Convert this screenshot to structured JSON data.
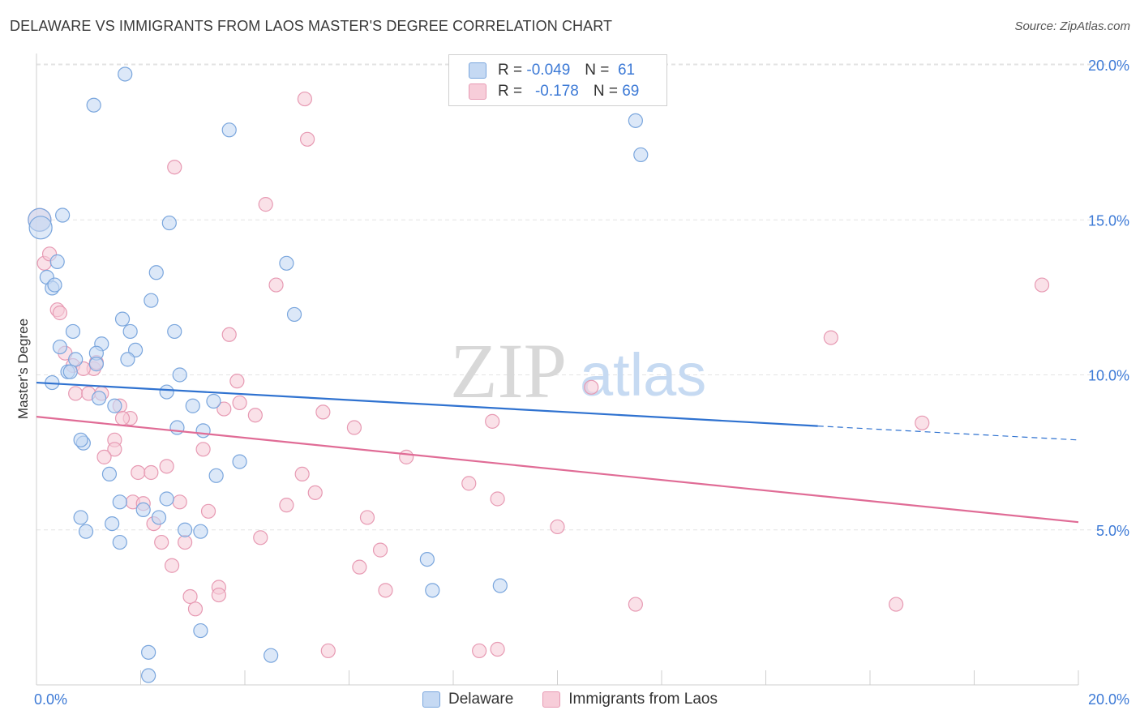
{
  "title": "DELAWARE VS IMMIGRANTS FROM LAOS MASTER'S DEGREE CORRELATION CHART",
  "source": "Source: ZipAtlas.com",
  "watermark": {
    "zip": "ZIP",
    "atlas": "atlas"
  },
  "legend_stats": [
    {
      "r_label": "R =",
      "r_value": "-0.049",
      "n_label": "N =",
      "n_value": "61"
    },
    {
      "r_label": "R =",
      "r_value": "-0.178",
      "n_label": "N =",
      "n_value": "69"
    }
  ],
  "bottom_legend": [
    "Delaware",
    "Immigrants from Laos"
  ],
  "colors": {
    "delaware_fill": "#c5d9f3",
    "delaware_stroke": "#7aa6dd",
    "delaware_line": "#2f72d0",
    "laos_fill": "#f7cdd9",
    "laos_stroke": "#e79ab3",
    "laos_line": "#e06c96",
    "tick": "#3d7ad6",
    "grid": "#e3e3e3"
  },
  "chart_data": {
    "type": "scatter",
    "title": "DELAWARE VS IMMIGRANTS FROM LAOS MASTER'S DEGREE CORRELATION CHART",
    "xlabel": "",
    "ylabel": "Master's Degree",
    "xlim": [
      0,
      20
    ],
    "ylim": [
      0,
      20.5
    ],
    "x_tick_labels": [
      "0.0%",
      "20.0%"
    ],
    "y_ticks": [
      5,
      10,
      15,
      20
    ],
    "y_tick_labels": [
      "5.0%",
      "10.0%",
      "15.0%",
      "20.0%"
    ],
    "grid": true,
    "legend_position": "top-center",
    "series": [
      {
        "name": "Delaware",
        "r": -0.049,
        "n": 61,
        "trend": {
          "x": [
            0,
            15
          ],
          "y": [
            9.75,
            8.35
          ],
          "dashed_extension": {
            "x": [
              15,
              20
            ],
            "y": [
              8.35,
              7.9
            ]
          }
        },
        "points": [
          [
            0.06,
            15.0
          ],
          [
            0.08,
            14.75
          ],
          [
            0.5,
            15.15
          ],
          [
            1.7,
            19.7
          ],
          [
            1.1,
            18.7
          ],
          [
            3.7,
            17.9
          ],
          [
            11.5,
            18.2
          ],
          [
            11.6,
            17.1
          ],
          [
            2.55,
            14.9
          ],
          [
            0.4,
            13.65
          ],
          [
            0.2,
            13.15
          ],
          [
            0.3,
            12.8
          ],
          [
            0.35,
            12.9
          ],
          [
            2.3,
            13.3
          ],
          [
            4.8,
            13.6
          ],
          [
            4.95,
            11.95
          ],
          [
            1.65,
            11.8
          ],
          [
            2.2,
            12.4
          ],
          [
            0.7,
            11.4
          ],
          [
            1.8,
            11.4
          ],
          [
            2.65,
            11.4
          ],
          [
            1.25,
            11.0
          ],
          [
            0.45,
            10.9
          ],
          [
            1.9,
            10.8
          ],
          [
            0.75,
            10.5
          ],
          [
            1.15,
            10.7
          ],
          [
            1.75,
            10.5
          ],
          [
            1.15,
            10.35
          ],
          [
            0.6,
            10.1
          ],
          [
            0.65,
            10.1
          ],
          [
            0.3,
            9.75
          ],
          [
            2.75,
            10.0
          ],
          [
            2.5,
            9.45
          ],
          [
            1.2,
            9.25
          ],
          [
            1.5,
            9.0
          ],
          [
            3.0,
            9.0
          ],
          [
            3.4,
            9.15
          ],
          [
            2.7,
            8.3
          ],
          [
            3.2,
            8.2
          ],
          [
            0.9,
            7.8
          ],
          [
            0.85,
            7.9
          ],
          [
            3.9,
            7.2
          ],
          [
            1.4,
            6.8
          ],
          [
            3.45,
            6.75
          ],
          [
            1.6,
            5.9
          ],
          [
            2.5,
            6.0
          ],
          [
            2.05,
            5.65
          ],
          [
            2.35,
            5.4
          ],
          [
            0.85,
            5.4
          ],
          [
            1.45,
            5.2
          ],
          [
            0.95,
            4.95
          ],
          [
            2.85,
            5.0
          ],
          [
            3.15,
            4.95
          ],
          [
            1.6,
            4.6
          ],
          [
            7.5,
            4.05
          ],
          [
            7.6,
            3.05
          ],
          [
            8.9,
            3.2
          ],
          [
            3.15,
            1.75
          ],
          [
            2.15,
            1.05
          ],
          [
            4.5,
            0.95
          ],
          [
            2.15,
            0.3
          ]
        ]
      },
      {
        "name": "Immigrants from Laos",
        "r": -0.178,
        "n": 69,
        "trend": {
          "x": [
            0,
            20
          ],
          "y": [
            8.65,
            5.25
          ]
        },
        "points": [
          [
            0.06,
            15.0
          ],
          [
            0.15,
            13.6
          ],
          [
            0.25,
            13.9
          ],
          [
            5.15,
            18.9
          ],
          [
            5.2,
            17.6
          ],
          [
            2.65,
            16.7
          ],
          [
            4.4,
            15.5
          ],
          [
            4.6,
            12.9
          ],
          [
            0.4,
            12.1
          ],
          [
            0.45,
            12.0
          ],
          [
            3.7,
            11.3
          ],
          [
            0.55,
            10.7
          ],
          [
            0.7,
            10.3
          ],
          [
            1.1,
            10.2
          ],
          [
            0.9,
            10.2
          ],
          [
            1.15,
            10.4
          ],
          [
            3.85,
            9.8
          ],
          [
            0.75,
            9.4
          ],
          [
            1.0,
            9.4
          ],
          [
            1.25,
            9.4
          ],
          [
            1.6,
            9.0
          ],
          [
            3.9,
            9.1
          ],
          [
            3.6,
            8.9
          ],
          [
            5.5,
            8.8
          ],
          [
            4.2,
            8.7
          ],
          [
            1.8,
            8.6
          ],
          [
            6.1,
            8.3
          ],
          [
            8.75,
            8.5
          ],
          [
            1.5,
            7.9
          ],
          [
            1.5,
            7.6
          ],
          [
            3.2,
            7.6
          ],
          [
            1.3,
            7.35
          ],
          [
            7.1,
            7.35
          ],
          [
            2.5,
            7.05
          ],
          [
            1.95,
            6.85
          ],
          [
            2.2,
            6.85
          ],
          [
            5.1,
            6.8
          ],
          [
            8.3,
            6.5
          ],
          [
            5.35,
            6.2
          ],
          [
            1.85,
            5.9
          ],
          [
            2.05,
            5.85
          ],
          [
            2.75,
            5.9
          ],
          [
            8.85,
            6.0
          ],
          [
            3.3,
            5.6
          ],
          [
            4.8,
            5.8
          ],
          [
            6.35,
            5.4
          ],
          [
            2.25,
            5.2
          ],
          [
            10.0,
            5.1
          ],
          [
            4.3,
            4.75
          ],
          [
            2.4,
            4.6
          ],
          [
            2.85,
            4.6
          ],
          [
            6.6,
            4.35
          ],
          [
            2.6,
            3.85
          ],
          [
            6.2,
            3.8
          ],
          [
            3.5,
            3.15
          ],
          [
            6.7,
            3.05
          ],
          [
            3.5,
            2.9
          ],
          [
            2.95,
            2.85
          ],
          [
            3.05,
            2.45
          ],
          [
            11.5,
            2.6
          ],
          [
            16.5,
            2.6
          ],
          [
            5.6,
            1.1
          ],
          [
            8.5,
            1.1
          ],
          [
            8.85,
            1.15
          ],
          [
            10.65,
            9.6
          ],
          [
            15.25,
            11.2
          ],
          [
            19.3,
            12.9
          ],
          [
            17.0,
            8.45
          ],
          [
            1.65,
            8.6
          ]
        ]
      }
    ]
  }
}
